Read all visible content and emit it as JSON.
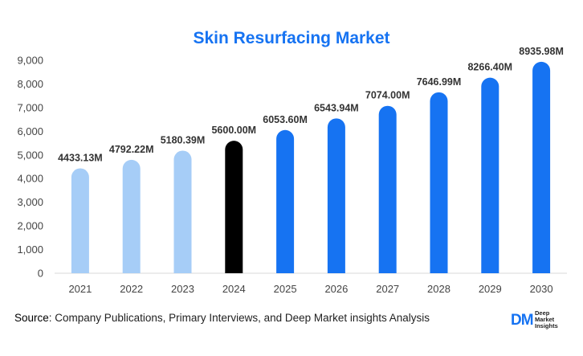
{
  "chart_data": {
    "type": "bar",
    "title": "Skin Resurfacing Market",
    "categories": [
      "2021",
      "2022",
      "2023",
      "2024",
      "2025",
      "2026",
      "2027",
      "2028",
      "2029",
      "2030"
    ],
    "values": [
      4433.13,
      4792.22,
      5180.39,
      5600.0,
      6053.6,
      6543.94,
      7074.0,
      7646.99,
      8266.4,
      8935.98
    ],
    "data_labels": [
      "4433.13M",
      "4792.22M",
      "5180.39M",
      "5600.00M",
      "6053.60M",
      "6543.94M",
      "7074.00M",
      "7646.99M",
      "8266.40M",
      "8935.98M"
    ],
    "y_ticks": [
      "0",
      "1,000",
      "2,000",
      "3,000",
      "4,000",
      "5,000",
      "6,000",
      "7,000",
      "8,000",
      "9,000"
    ],
    "ylim": [
      0,
      9000
    ],
    "xlabel": "",
    "ylabel": "",
    "grid": false,
    "bar_colors": [
      "#a6cdf7",
      "#a6cdf7",
      "#a6cdf7",
      "#000000",
      "#1673f2",
      "#1673f2",
      "#1673f2",
      "#1673f2",
      "#1673f2",
      "#1673f2"
    ],
    "colors": {
      "historical": "#a6cdf7",
      "base_year": "#000000",
      "forecast": "#1673f2",
      "title": "#1673f2"
    }
  },
  "source": {
    "label": "Source",
    "text": ": Company Publications, Primary Interviews, and Deep Market insights Analysis"
  },
  "logo": {
    "mark": "DM",
    "line1": "Deep",
    "line2": "Market",
    "line3": "Insights"
  }
}
